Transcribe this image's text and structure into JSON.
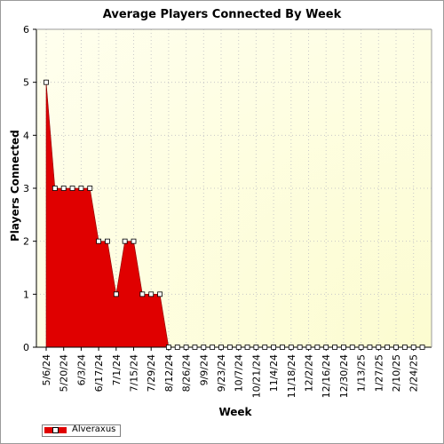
{
  "chart_data": {
    "type": "area",
    "title": "Average Players Connected By Week",
    "xlabel": "Week",
    "ylabel": "Players Connected",
    "ylim": [
      0,
      6
    ],
    "yticks": [
      "0",
      "1",
      "2",
      "3",
      "4",
      "5",
      "6"
    ],
    "grid": true,
    "legend_position": "bottom-left",
    "x_tick_labels": [
      "5/6/24",
      "5/20/24",
      "6/3/24",
      "6/17/24",
      "7/1/24",
      "7/15/24",
      "7/29/24",
      "8/12/24",
      "8/26/24",
      "9/9/24",
      "9/23/24",
      "10/7/24",
      "10/21/24",
      "11/4/24",
      "11/18/24",
      "12/2/24",
      "12/16/24",
      "12/30/24",
      "1/13/25",
      "1/27/25",
      "2/10/25",
      "2/24/25"
    ],
    "x": [
      "5/6/24",
      "5/13/24",
      "5/20/24",
      "5/27/24",
      "6/3/24",
      "6/10/24",
      "6/17/24",
      "6/24/24",
      "7/1/24",
      "7/8/24",
      "7/15/24",
      "7/22/24",
      "7/29/24",
      "8/5/24",
      "8/12/24",
      "8/19/24",
      "8/26/24",
      "9/2/24",
      "9/9/24",
      "9/16/24",
      "9/23/24",
      "9/30/24",
      "10/7/24",
      "10/14/24",
      "10/21/24",
      "10/28/24",
      "11/4/24",
      "11/11/24",
      "11/18/24",
      "11/25/24",
      "12/2/24",
      "12/9/24",
      "12/16/24",
      "12/23/24",
      "12/30/24",
      "1/6/25",
      "1/13/25",
      "1/20/25",
      "1/27/25",
      "2/3/25",
      "2/10/25",
      "2/17/25",
      "2/24/25",
      "3/3/25"
    ],
    "series": [
      {
        "name": "Alveraxus",
        "color": "#e00000",
        "values": [
          5,
          3,
          3,
          3,
          3,
          3,
          2,
          2,
          1,
          2,
          2,
          1,
          1,
          1,
          0,
          0,
          0,
          0,
          0,
          0,
          0,
          0,
          0,
          0,
          0,
          0,
          0,
          0,
          0,
          0,
          0,
          0,
          0,
          0,
          0,
          0,
          0,
          0,
          0,
          0,
          0,
          0,
          0,
          0
        ]
      }
    ]
  },
  "colors": {
    "plot_background": "#ffffe6",
    "area_fill": "#e00000",
    "grid": "#c8c8c8"
  }
}
